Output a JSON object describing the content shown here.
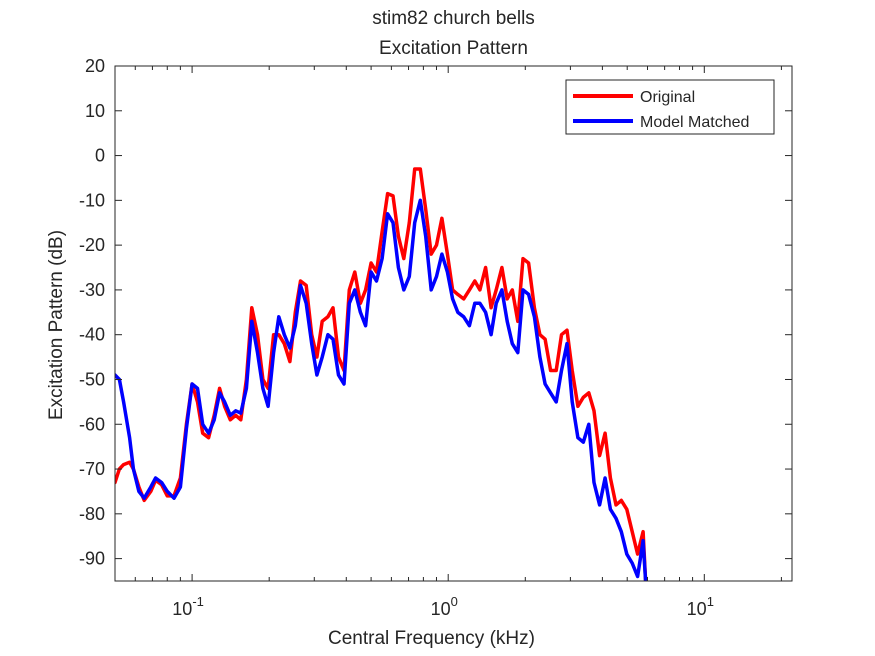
{
  "chart_data": {
    "type": "line",
    "title": "stim82 church bells",
    "subtitle": "Excitation Pattern",
    "xlabel": "Central Frequency (kHz)",
    "ylabel": "Excitation Pattern (dB)",
    "xscale": "log",
    "xlim": [
      0.05,
      22
    ],
    "ylim": [
      -95,
      20
    ],
    "yticks": [
      -90,
      -80,
      -70,
      -60,
      -50,
      -40,
      -30,
      -20,
      -10,
      0,
      10,
      20
    ],
    "xticks": [
      0.1,
      1,
      10
    ],
    "xtick_labels": [
      {
        "base": "10",
        "exp": "-1"
      },
      {
        "base": "10",
        "exp": "0"
      },
      {
        "base": "10",
        "exp": "1"
      }
    ],
    "grid": false,
    "legend_position": "top-right",
    "series": [
      {
        "name": "Original",
        "color": "#ff0000",
        "x": [
          0.05,
          0.052,
          0.054,
          0.057,
          0.059,
          0.062,
          0.065,
          0.069,
          0.072,
          0.076,
          0.08,
          0.085,
          0.09,
          0.095,
          0.1,
          0.105,
          0.11,
          0.116,
          0.122,
          0.128,
          0.134,
          0.141,
          0.148,
          0.155,
          0.163,
          0.171,
          0.18,
          0.189,
          0.198,
          0.208,
          0.218,
          0.229,
          0.241,
          0.253,
          0.265,
          0.279,
          0.293,
          0.307,
          0.322,
          0.339,
          0.355,
          0.373,
          0.392,
          0.411,
          0.432,
          0.454,
          0.476,
          0.5,
          0.525,
          0.552,
          0.58,
          0.609,
          0.639,
          0.671,
          0.705,
          0.74,
          0.778,
          0.817,
          0.858,
          0.9,
          0.945,
          0.993,
          1.04,
          1.09,
          1.15,
          1.21,
          1.27,
          1.33,
          1.4,
          1.47,
          1.54,
          1.62,
          1.7,
          1.78,
          1.87,
          1.96,
          2.06,
          2.17,
          2.28,
          2.39,
          2.51,
          2.64,
          2.77,
          2.91,
          3.05,
          3.21,
          3.37,
          3.54,
          3.71,
          3.9,
          4.1,
          4.3,
          4.52,
          4.74,
          4.98,
          5.23,
          5.49,
          5.77,
          5.9
        ],
        "y": [
          -73,
          -70,
          -69,
          -68.5,
          -70,
          -74,
          -77,
          -75,
          -72.5,
          -73.5,
          -76,
          -76,
          -72,
          -60,
          -51,
          -55,
          -62,
          -63,
          -58,
          -52,
          -56,
          -59,
          -58,
          -59,
          -50,
          -34,
          -40,
          -50,
          -52,
          -40,
          -40,
          -42,
          -46,
          -35,
          -28,
          -29,
          -40,
          -45,
          -37,
          -36,
          -34,
          -45,
          -48,
          -30,
          -26,
          -33,
          -30,
          -24,
          -26,
          -17,
          -8.5,
          -9,
          -18,
          -23,
          -15,
          -3,
          -3,
          -12,
          -22,
          -20,
          -14,
          -22,
          -30,
          -31,
          -32,
          -30,
          -28,
          -30,
          -25,
          -34,
          -30,
          -25,
          -32,
          -30,
          -37,
          -23,
          -24,
          -34,
          -40,
          -41,
          -48,
          -48,
          -40,
          -39,
          -48,
          -56,
          -54,
          -53,
          -57,
          -67,
          -62,
          -72,
          -78,
          -77,
          -79,
          -84,
          -89,
          -84,
          -95
        ]
      },
      {
        "name": "Model Matched",
        "color": "#0000ff",
        "x": [
          0.05,
          0.052,
          0.054,
          0.057,
          0.059,
          0.062,
          0.065,
          0.069,
          0.072,
          0.076,
          0.08,
          0.085,
          0.09,
          0.095,
          0.1,
          0.105,
          0.11,
          0.116,
          0.122,
          0.128,
          0.134,
          0.141,
          0.148,
          0.155,
          0.163,
          0.171,
          0.18,
          0.189,
          0.198,
          0.208,
          0.218,
          0.229,
          0.241,
          0.253,
          0.265,
          0.279,
          0.293,
          0.307,
          0.322,
          0.339,
          0.355,
          0.373,
          0.392,
          0.411,
          0.432,
          0.454,
          0.476,
          0.5,
          0.525,
          0.552,
          0.58,
          0.609,
          0.639,
          0.671,
          0.705,
          0.74,
          0.778,
          0.817,
          0.858,
          0.9,
          0.945,
          0.993,
          1.04,
          1.09,
          1.15,
          1.21,
          1.27,
          1.33,
          1.4,
          1.47,
          1.54,
          1.62,
          1.7,
          1.78,
          1.87,
          1.96,
          2.06,
          2.17,
          2.28,
          2.39,
          2.51,
          2.64,
          2.77,
          2.91,
          3.05,
          3.21,
          3.37,
          3.54,
          3.71,
          3.9,
          4.1,
          4.3,
          4.52,
          4.74,
          4.98,
          5.23,
          5.49,
          5.77,
          5.9
        ],
        "y": [
          -49,
          -50,
          -55,
          -63,
          -70,
          -75,
          -76.5,
          -74,
          -72,
          -73,
          -75,
          -76.5,
          -74,
          -61,
          -51,
          -52,
          -60,
          -62,
          -59,
          -53,
          -55,
          -58,
          -57,
          -57.5,
          -52,
          -37,
          -44,
          -52,
          -56,
          -44,
          -36,
          -40,
          -43,
          -38,
          -29,
          -33,
          -42,
          -49,
          -45,
          -40,
          -41,
          -49,
          -51,
          -33,
          -30,
          -35,
          -38,
          -26,
          -28,
          -23,
          -13,
          -15,
          -25,
          -30,
          -27,
          -15,
          -10,
          -18,
          -30,
          -27,
          -22,
          -26,
          -32,
          -35,
          -36,
          -38,
          -33,
          -33,
          -35,
          -40,
          -33,
          -30,
          -37,
          -42,
          -44,
          -30,
          -31,
          -36,
          -45,
          -51,
          -53,
          -55,
          -48,
          -42,
          -55,
          -63,
          -64,
          -60,
          -73,
          -78,
          -72,
          -79,
          -81,
          -84,
          -89,
          -91,
          -94,
          -86,
          -95
        ]
      }
    ]
  }
}
